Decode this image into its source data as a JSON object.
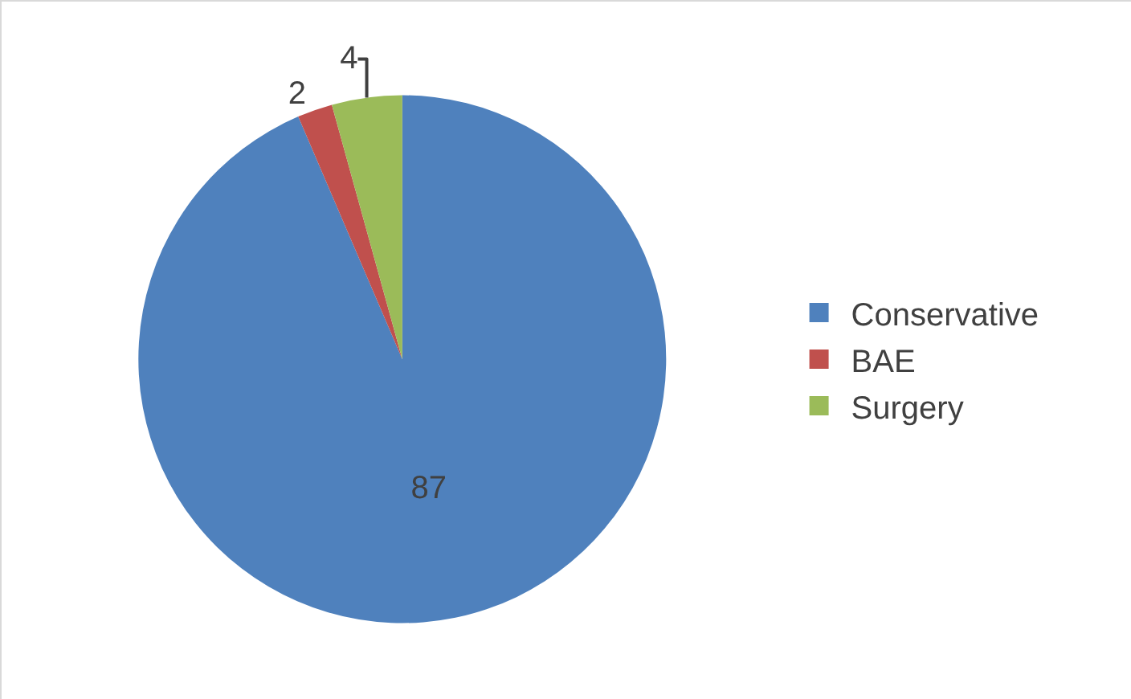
{
  "chart_data": {
    "type": "pie",
    "categories": [
      "Conservative",
      "BAE",
      "Surgery"
    ],
    "values": [
      87,
      2,
      4
    ],
    "colors": [
      "#4f81bd",
      "#c0504d",
      "#9bbb59"
    ],
    "data_labels": true,
    "legend": "right"
  }
}
